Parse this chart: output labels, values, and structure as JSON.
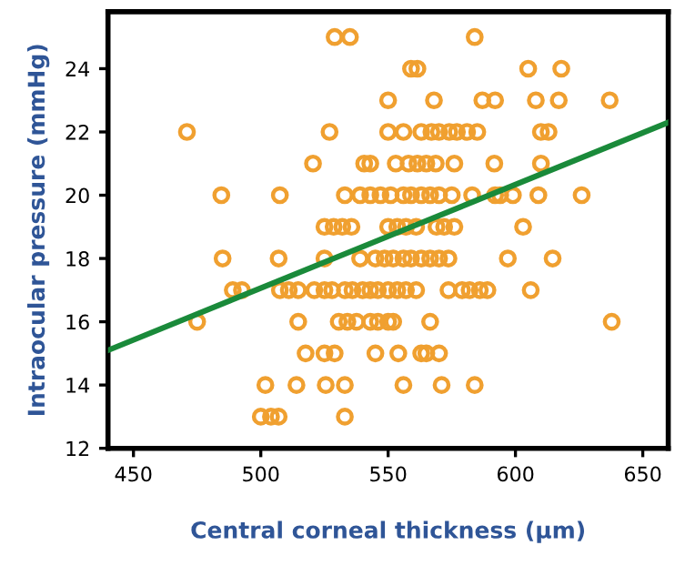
{
  "chart_data": {
    "type": "scatter",
    "xlabel": "Central corneal thickness (µm)",
    "ylabel": "Intraocular pressure (mmHg)",
    "xlim": [
      440,
      660
    ],
    "ylim": [
      12,
      25.8
    ],
    "xticks": [
      450,
      500,
      550,
      600,
      650
    ],
    "yticks": [
      12,
      14,
      16,
      18,
      20,
      22,
      24
    ],
    "grid": false,
    "marker": "circle",
    "series": [
      {
        "color": "#f0a030",
        "x": [
          529,
          535,
          584,
          559,
          561.5,
          605,
          618,
          550,
          568,
          587,
          592,
          608,
          617,
          637,
          471,
          527,
          550,
          556,
          563,
          567,
          570,
          574,
          577,
          581,
          585,
          610,
          613,
          520.5,
          540.6,
          543,
          553,
          558,
          561.5,
          565,
          568.7,
          576,
          591.7,
          610,
          484.5,
          507.5,
          533,
          539,
          543,
          547,
          551,
          556,
          559,
          563,
          566.5,
          570,
          575,
          583,
          592,
          594,
          599,
          609,
          626,
          525,
          528.6,
          532,
          535.6,
          550,
          553.6,
          557,
          561,
          569,
          572,
          576,
          603,
          485,
          507,
          525,
          539,
          545,
          548.6,
          552,
          556,
          559,
          563,
          566.5,
          570,
          573.7,
          597,
          614.6,
          489,
          492.6,
          507.5,
          511,
          514.7,
          521,
          525,
          528,
          533,
          536,
          540,
          543,
          546,
          550,
          553.6,
          557,
          561,
          573.7,
          579,
          582,
          586,
          589,
          606,
          475,
          514.7,
          530.6,
          534,
          537.6,
          543,
          546,
          550,
          552,
          566.5,
          637.8,
          517.6,
          525,
          529,
          545,
          554,
          563,
          565,
          570,
          501.8,
          514,
          525.5,
          533,
          556,
          571,
          584,
          500,
          504,
          507,
          533
        ],
        "values": [
          25,
          25,
          25,
          24,
          24,
          24,
          24,
          23,
          23,
          23,
          23,
          23,
          23,
          23,
          22,
          22,
          22,
          22,
          22,
          22,
          22,
          22,
          22,
          22,
          22,
          22,
          22,
          21,
          21,
          21,
          21,
          21,
          21,
          21,
          21,
          21,
          21,
          21,
          20,
          20,
          20,
          20,
          20,
          20,
          20,
          20,
          20,
          20,
          20,
          20,
          20,
          20,
          20,
          20,
          20,
          20,
          20,
          19,
          19,
          19,
          19,
          19,
          19,
          19,
          19,
          19,
          19,
          19,
          19,
          18,
          18,
          18,
          18,
          18,
          18,
          18,
          18,
          18,
          18,
          18,
          18,
          18,
          18,
          18,
          17,
          17,
          17,
          17,
          17,
          17,
          17,
          17,
          17,
          17,
          17,
          17,
          17,
          17,
          17,
          17,
          17,
          17,
          17,
          17,
          17,
          17,
          17,
          16,
          16,
          16,
          16,
          16,
          16,
          16,
          16,
          16,
          16,
          16,
          15,
          15,
          15,
          15,
          15,
          15,
          15,
          15,
          14,
          14,
          14,
          14,
          14,
          14,
          14,
          13,
          13,
          13,
          13
        ]
      },
      {
        "type": "line",
        "color": "#1a8a3a",
        "marker": "none",
        "x": [
          440,
          660
        ],
        "values": [
          15.1,
          22.3
        ]
      }
    ]
  }
}
